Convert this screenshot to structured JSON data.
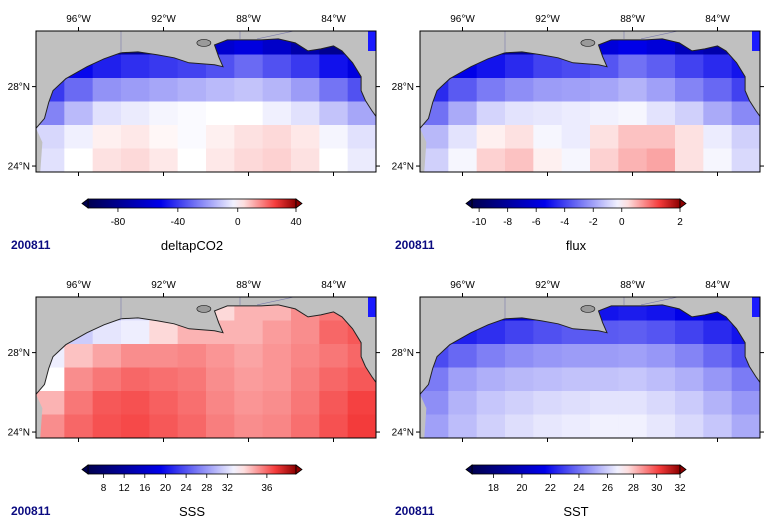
{
  "date_label": "200811",
  "lon_labels": [
    "96°W",
    "92°W",
    "88°W",
    "84°W"
  ],
  "lat_labels": [
    "28°N",
    "24°N"
  ],
  "panels": [
    {
      "id": "deltapco2",
      "title": "deltapCO2",
      "tick_labels": [
        "-80",
        "-40",
        "0",
        "40"
      ],
      "tick_values": [
        -80,
        -40,
        0,
        40
      ],
      "range": [
        -100,
        40
      ],
      "grid": [
        [
          -90,
          -88,
          -85,
          -80,
          -72,
          -65,
          -60,
          -55,
          -62,
          -72,
          -80,
          -88
        ],
        [
          -55,
          -50,
          -45,
          -42,
          -40,
          -38,
          -35,
          -30,
          -35,
          -40,
          -48,
          -55
        ],
        [
          -40,
          -30,
          -22,
          -20,
          -18,
          -16,
          -14,
          -12,
          -15,
          -20,
          -28,
          -35
        ],
        [
          -25,
          -14,
          -6,
          -4,
          -2,
          -1,
          0,
          0,
          -3,
          -6,
          -12,
          -18
        ],
        [
          -8,
          -3,
          2,
          3,
          1,
          -1,
          2,
          4,
          5,
          3,
          -2,
          -6
        ],
        [
          -6,
          0,
          4,
          5,
          3,
          0,
          3,
          5,
          6,
          4,
          0,
          -4
        ]
      ]
    },
    {
      "id": "flux",
      "title": "flux",
      "tick_labels": [
        "-10",
        "-8",
        "-6",
        "-4",
        "-2",
        "0",
        "2"
      ],
      "tick_values": [
        -10,
        -8,
        -6,
        -4,
        -2,
        0,
        2
      ],
      "range": [
        -10.5,
        2
      ],
      "grid": [
        [
          -9.5,
          -9.0,
          -8.5,
          -8,
          -7,
          -6.5,
          -6,
          -5.5,
          -6,
          -7,
          -7.5,
          -8.5
        ],
        [
          -6,
          -5.5,
          -5,
          -4.5,
          -4,
          -3.8,
          -3.6,
          -3,
          -3.4,
          -4,
          -4.5,
          -5
        ],
        [
          -4.5,
          -3.5,
          -2.8,
          -2.4,
          -2.1,
          -2,
          -1.9,
          -1.6,
          -2,
          -2.6,
          -3.2,
          -4
        ],
        [
          -3,
          -1.8,
          -0.9,
          -0.6,
          -0.5,
          -0.4,
          -0.3,
          -0.2,
          -0.6,
          -1,
          -1.8,
          -2.5
        ],
        [
          -1.5,
          -0.6,
          0.1,
          0.2,
          -0.2,
          -0.4,
          0.2,
          0.4,
          0.4,
          0.2,
          -0.4,
          -1
        ],
        [
          -1,
          -0.2,
          0.3,
          0.4,
          0.1,
          -0.2,
          0.3,
          0.5,
          0.6,
          0.2,
          -0.2,
          -0.8
        ]
      ]
    },
    {
      "id": "sss",
      "title": "SSS",
      "tick_labels": [
        "8",
        "12",
        "16",
        "20",
        "24",
        "28",
        "32",
        "36"
      ],
      "tick_values": [
        8,
        12,
        16,
        20,
        24,
        28,
        32,
        36
      ],
      "range": [
        5,
        38
      ],
      "grid": [
        [
          27,
          27,
          30,
          32,
          33.5,
          34,
          34.5,
          35,
          35,
          35.5,
          35.8,
          36
        ],
        [
          28,
          31,
          32.5,
          33,
          34.5,
          35,
          35,
          35,
          35.3,
          35.5,
          36,
          36.2
        ],
        [
          33,
          34.8,
          35.2,
          35.5,
          35.5,
          35.6,
          35.4,
          35.2,
          35.4,
          35.6,
          35.8,
          36
        ],
        [
          34,
          35.5,
          35.8,
          36,
          35.9,
          35.8,
          35.5,
          35.3,
          35.4,
          35.7,
          36,
          36.2
        ],
        [
          35,
          35.8,
          36.2,
          36.3,
          36.1,
          35.9,
          35.6,
          35.4,
          35.5,
          35.8,
          36.2,
          36.5
        ],
        [
          35.5,
          36,
          36.3,
          36.4,
          36.2,
          36,
          35.7,
          35.5,
          35.6,
          35.9,
          36.3,
          36.6
        ]
      ]
    },
    {
      "id": "sst",
      "title": "SST",
      "tick_labels": [
        "18",
        "20",
        "22",
        "24",
        "26",
        "28",
        "30",
        "32"
      ],
      "tick_values": [
        18,
        20,
        22,
        24,
        26,
        28,
        30,
        32
      ],
      "range": [
        16.5,
        32
      ],
      "grid": [
        [
          20,
          20,
          20.5,
          21,
          21.5,
          21.8,
          22,
          22.2,
          22,
          21.5,
          21,
          20.5
        ],
        [
          22,
          22.3,
          22.6,
          23,
          23.3,
          23.5,
          23.5,
          23.6,
          23.4,
          23,
          22.5,
          22
        ],
        [
          23.2,
          23.8,
          24.3,
          24.6,
          24.8,
          24.9,
          24.9,
          25,
          24.8,
          24.4,
          23.8,
          23.2
        ],
        [
          24.2,
          25,
          25.3,
          25.5,
          25.6,
          25.7,
          25.7,
          25.8,
          25.6,
          25.3,
          24.8,
          24.2
        ],
        [
          24.6,
          25.4,
          25.8,
          26,
          26.2,
          26.3,
          26.4,
          26.4,
          26.2,
          25.9,
          25.4,
          24.8
        ],
        [
          25,
          25.6,
          26,
          26.3,
          26.5,
          26.6,
          26.7,
          26.7,
          26.5,
          26.2,
          25.8,
          25.2
        ]
      ]
    }
  ],
  "colors": {
    "land": "#c0c0c0",
    "coast": "#222222",
    "date_label": "#0a0a80"
  }
}
